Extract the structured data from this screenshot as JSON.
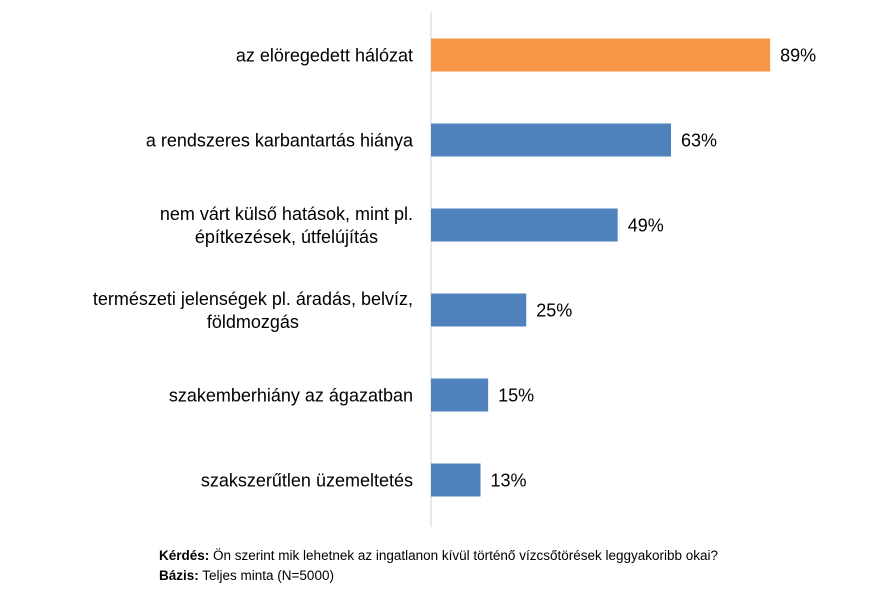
{
  "chart_data": {
    "type": "bar",
    "orientation": "horizontal",
    "categories": [
      [
        "az elöregedett hálózat"
      ],
      [
        "a rendszeres karbantartás hiánya"
      ],
      [
        "nem várt külső hatások, mint pl.",
        "építkezések, útfelújítás"
      ],
      [
        "természeti jelenségek pl. áradás, belvíz,",
        "földmozgás"
      ],
      [
        "szakemberhiány az ágazatban"
      ],
      [
        "szakszerűtlen üzemeltetés"
      ]
    ],
    "values": [
      89,
      63,
      49,
      25,
      15,
      13
    ],
    "value_labels": [
      "89%",
      "63%",
      "49%",
      "25%",
      "15%",
      "13%"
    ],
    "highlight_index": 0,
    "colors": {
      "default": "#4f81bd",
      "highlight": "#f79646",
      "axis": "#d0d0d0"
    },
    "xlim": [
      0,
      100
    ],
    "grid": false,
    "legend": "none"
  },
  "footer": {
    "question_label": "Kérdés:",
    "question_text": " Ön szerint mik lehetnek az ingatlanon kívül történő vízcsőtörések leggyakoribb okai?",
    "base_label": "Bázis:",
    "base_text": " Teljes minta (N=5000)"
  }
}
